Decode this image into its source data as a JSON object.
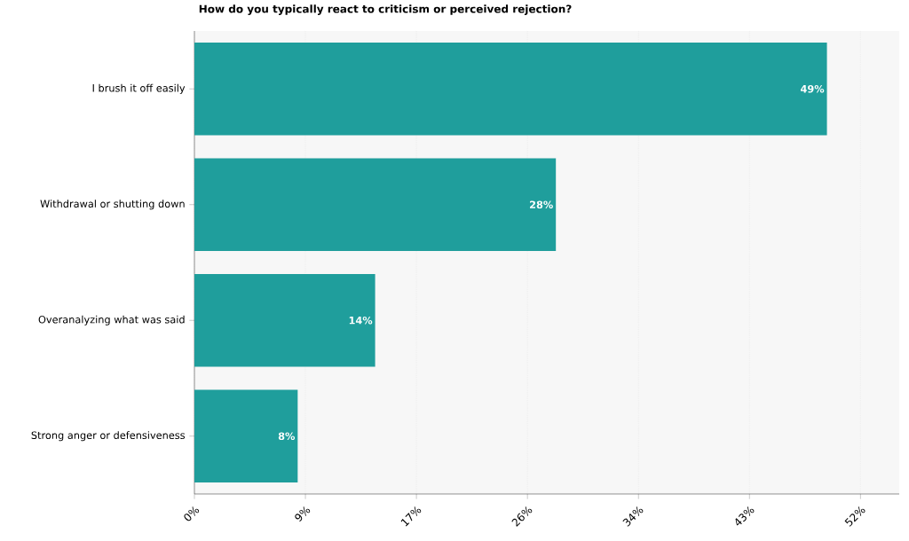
{
  "chart_data": {
    "type": "bar",
    "orientation": "horizontal",
    "title": "How do you typically react to criticism or perceived rejection?",
    "categories": [
      "I brush it off easily",
      "Withdrawal or shutting down",
      "Overanalyzing what was said",
      "Strong anger or defensiveness"
    ],
    "values": [
      49,
      28,
      14,
      8
    ],
    "color": "#1f9e9c",
    "value_labels": [
      "49%",
      "28%",
      "14%",
      "8%"
    ],
    "xlim": [
      0,
      54.6
    ],
    "xticks": [
      {
        "value": 0,
        "label": "0%"
      },
      {
        "value": 8.6,
        "label": "9%"
      },
      {
        "value": 17.2,
        "label": "17%"
      },
      {
        "value": 25.8,
        "label": "26%"
      },
      {
        "value": 34.4,
        "label": "34%"
      },
      {
        "value": 43.0,
        "label": "43%"
      },
      {
        "value": 51.6,
        "label": "52%"
      }
    ],
    "grid": "x"
  }
}
